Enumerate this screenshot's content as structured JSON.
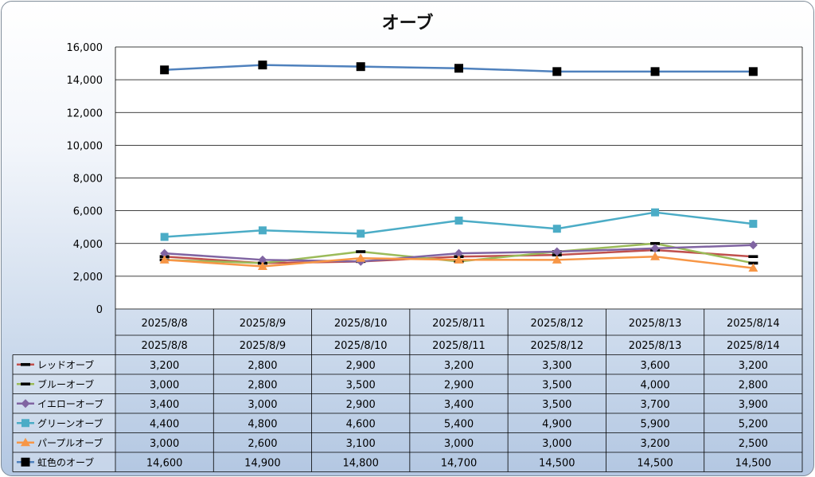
{
  "chart_data": {
    "type": "line",
    "title": "オーブ",
    "xlabel": "",
    "ylabel": "",
    "ylim": [
      0,
      16000
    ],
    "yticks": [
      "0",
      "2,000",
      "4,000",
      "6,000",
      "8,000",
      "10,000",
      "12,000",
      "14,000",
      "16,000"
    ],
    "categories": [
      "2025/8/8",
      "2025/8/9",
      "2025/8/10",
      "2025/8/11",
      "2025/8/12",
      "2025/8/13",
      "2025/8/14"
    ],
    "grid": true,
    "legend": "data-table",
    "series": [
      {
        "name": "レッドオーブ",
        "color": "#c0504d",
        "marker": "dash",
        "values": [
          3200,
          2800,
          2900,
          3200,
          3300,
          3600,
          3200
        ],
        "labels": [
          "3,200",
          "2,800",
          "2,900",
          "3,200",
          "3,300",
          "3,600",
          "3,200"
        ]
      },
      {
        "name": "ブルーオーブ",
        "color": "#9bbb59",
        "marker": "dash",
        "values": [
          3000,
          2800,
          3500,
          2900,
          3500,
          4000,
          2800
        ],
        "labels": [
          "3,000",
          "2,800",
          "3,500",
          "2,900",
          "3,500",
          "4,000",
          "2,800"
        ]
      },
      {
        "name": "イエローオーブ",
        "color": "#8064a2",
        "marker": "diamond",
        "values": [
          3400,
          3000,
          2900,
          3400,
          3500,
          3700,
          3900
        ],
        "labels": [
          "3,400",
          "3,000",
          "2,900",
          "3,400",
          "3,500",
          "3,700",
          "3,900"
        ]
      },
      {
        "name": "グリーンオーブ",
        "color": "#4bacc6",
        "marker": "square",
        "values": [
          4400,
          4800,
          4600,
          5400,
          4900,
          5900,
          5200
        ],
        "labels": [
          "4,400",
          "4,800",
          "4,600",
          "5,400",
          "4,900",
          "5,900",
          "5,200"
        ]
      },
      {
        "name": "パープルオーブ",
        "color": "#f79646",
        "marker": "triangle",
        "values": [
          3000,
          2600,
          3100,
          3000,
          3000,
          3200,
          2500
        ],
        "labels": [
          "3,000",
          "2,600",
          "3,100",
          "3,000",
          "3,000",
          "3,200",
          "2,500"
        ]
      },
      {
        "name": "虹色のオーブ",
        "color": "#4f81bd",
        "marker": "black-square",
        "values": [
          14600,
          14900,
          14800,
          14700,
          14500,
          14500,
          14500
        ],
        "labels": [
          "14,600",
          "14,900",
          "14,800",
          "14,700",
          "14,500",
          "14,500",
          "14,500"
        ]
      }
    ]
  }
}
